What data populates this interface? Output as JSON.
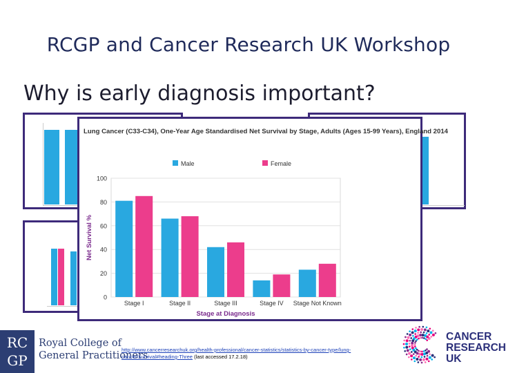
{
  "slide": {
    "title": "RCGP and Cancer Research UK Workshop",
    "subtitle": "Why is early diagnosis important?"
  },
  "colors": {
    "male": "#29a8e0",
    "female": "#ec3d8c",
    "frame": "#3d2a7a",
    "title_navy": "#1f2a5a"
  },
  "chart_data": {
    "type": "bar",
    "title": "Lung Cancer (C33-C34), One-Year Age Standardised Net Survival by Stage, Adults (Ages 15-99 Years), England 2014",
    "xlabel": "Stage at Diagnosis",
    "ylabel": "Net Survival %",
    "ylim": [
      0,
      100
    ],
    "yticks": [
      "0",
      "20",
      "40",
      "60",
      "80",
      "100"
    ],
    "grid": true,
    "legend_position": "top",
    "categories": [
      "Stage I",
      "Stage II",
      "Stage III",
      "Stage IV",
      "Stage Not Known"
    ],
    "series": [
      {
        "name": "Male",
        "values": [
          81,
          66,
          42,
          14,
          23
        ]
      },
      {
        "name": "Female",
        "values": [
          85,
          68,
          46,
          19,
          28
        ]
      }
    ]
  },
  "footer": {
    "rcgp_logo": "RC GP",
    "rcgp_line1": "Royal College of",
    "rcgp_line2": "General Practitioners",
    "link_url": "http://www.cancerresearchuk.org/health-professional/cancer-statistics/statistics-by-cancer-type/lung-cancer/survival#heading-Three",
    "link_note": "(last accessed 17.2.18)",
    "cruk_line1": "CANCER",
    "cruk_line2": "RESEARCH",
    "cruk_line3": "UK"
  }
}
